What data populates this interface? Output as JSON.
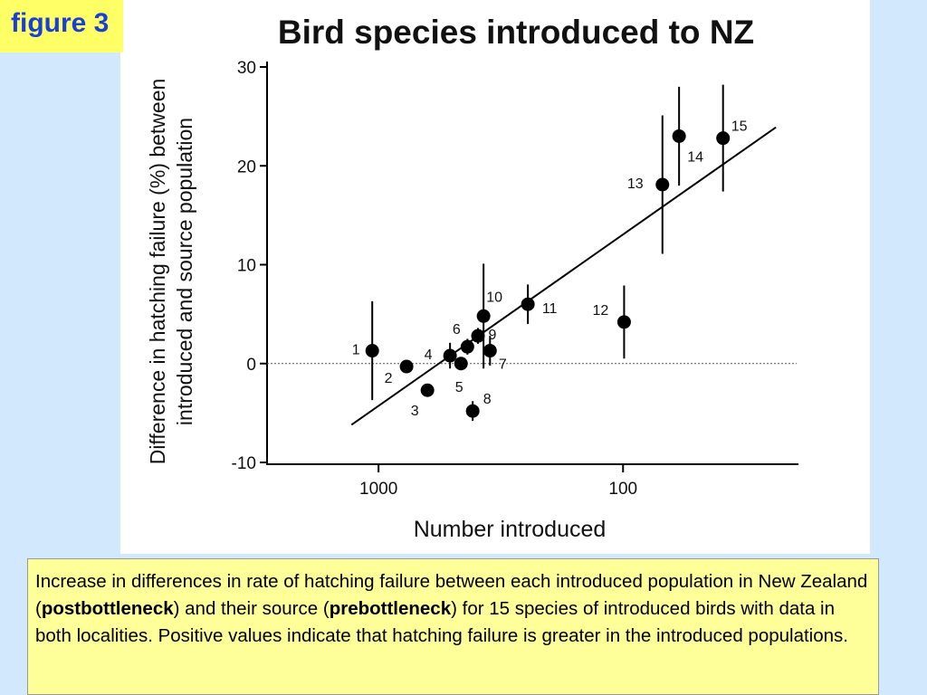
{
  "badge": "figure 3",
  "chart_data": {
    "type": "scatter",
    "title": "Bird species introduced to NZ",
    "xlabel": "Number introduced",
    "ylabel": [
      "Difference in hatching failure (%) between",
      "introduced and source population"
    ],
    "x": [
      1061,
      768,
      631,
      510,
      460,
      433,
      350,
      412,
      392,
      372,
      245,
      99,
      69,
      59,
      39
    ],
    "y": [
      1.3,
      -0.3,
      -2.7,
      0.8,
      0,
      1.7,
      1.3,
      -4.8,
      2.8,
      4.8,
      6.0,
      4.2,
      18.1,
      23.0,
      22.8
    ],
    "errors": [
      5.0,
      null,
      null,
      1.3,
      null,
      0.8,
      1.5,
      1.0,
      0.8,
      5.3,
      2.0,
      3.7,
      7.0,
      5.0,
      5.4
    ],
    "point_labels": [
      "1",
      "2",
      "3",
      "4",
      "5",
      "6",
      "7",
      "8",
      "9",
      "10",
      "11",
      "12",
      "13",
      "14",
      "15"
    ],
    "fit_line": {
      "x": [
        1290,
        23.7
      ],
      "y": [
        -6.2,
        23.9
      ]
    },
    "reference_line": 0,
    "color": "#000000",
    "xscale": "log",
    "xlim": [
      2857,
      19.5
    ],
    "xticks": [
      1000,
      100
    ],
    "ylim": [
      -10,
      30
    ],
    "yticks": [
      -10,
      0,
      10,
      20,
      30
    ]
  },
  "caption": {
    "parts": [
      {
        "text": "Increase in differences in rate of hatching failure between each introduced population in New Zealand (",
        "bold": false
      },
      {
        "text": "postbottleneck",
        "bold": true
      },
      {
        "text": ") and their source (",
        "bold": false
      },
      {
        "text": "prebottleneck",
        "bold": true
      },
      {
        "text": ") for 15 species of introduced birds with data in both localities. Positive values indicate that hatching failure is greater in the introduced populations.",
        "bold": false
      }
    ]
  }
}
